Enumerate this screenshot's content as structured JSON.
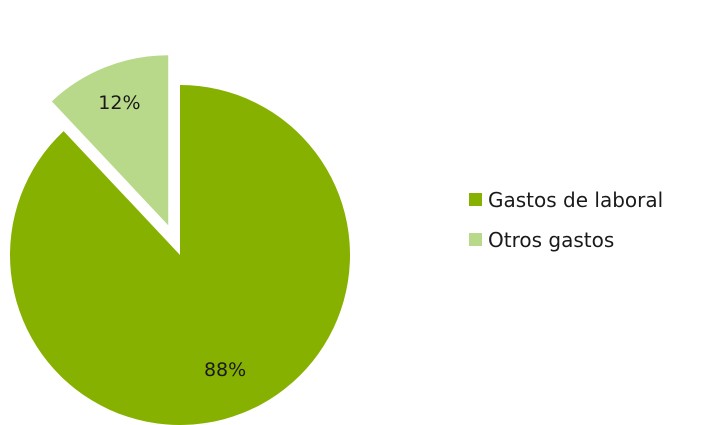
{
  "chart_data": {
    "type": "pie",
    "title": "",
    "categories": [
      "Gastos de laboral",
      "Otros gastos"
    ],
    "values": [
      88,
      12
    ],
    "data_labels": [
      "88%",
      "12%"
    ],
    "colors": [
      "#86b100",
      "#b8d98a"
    ],
    "exploded": [
      false,
      true
    ],
    "legend_position": "right"
  }
}
